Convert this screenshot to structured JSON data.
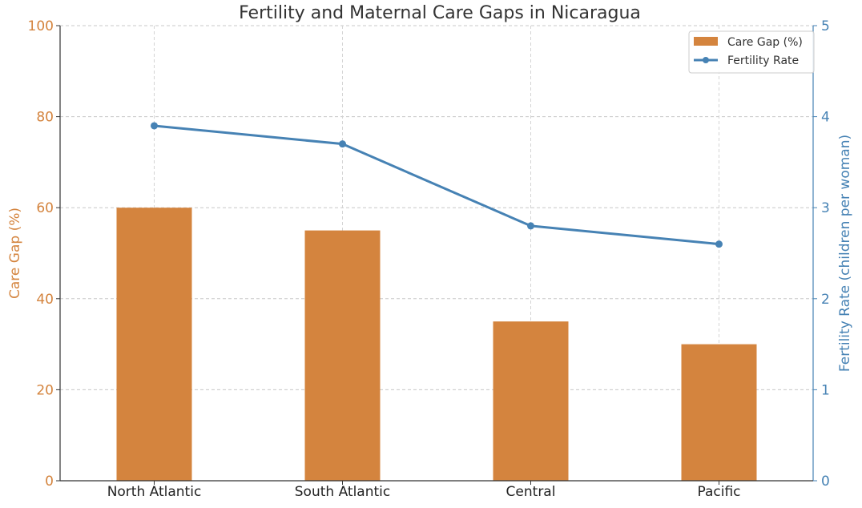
{
  "chart_data": {
    "type": "bar",
    "title": "Fertility and Maternal Care Gaps in Nicaragua",
    "categories": [
      "North Atlantic",
      "South Atlantic",
      "Central",
      "Pacific"
    ],
    "series": [
      {
        "name": "Care Gap (%)",
        "type": "bar",
        "axis": "left",
        "color": "#d4843e",
        "values": [
          60,
          55,
          35,
          30
        ]
      },
      {
        "name": "Fertility Rate",
        "type": "line",
        "axis": "right",
        "color": "#4682b4",
        "values": [
          3.9,
          3.7,
          2.8,
          2.6
        ]
      }
    ],
    "ylabel_left": "Care Gap (%)",
    "ylabel_right": "Fertility Rate (children per woman)",
    "ylim_left": [
      0,
      100
    ],
    "ylim_right": [
      0,
      5
    ],
    "yticks_left": [
      0,
      20,
      40,
      60,
      80,
      100
    ],
    "yticks_right": [
      0,
      1,
      2,
      3,
      4,
      5
    ],
    "grid": true,
    "legend": "top-right"
  }
}
